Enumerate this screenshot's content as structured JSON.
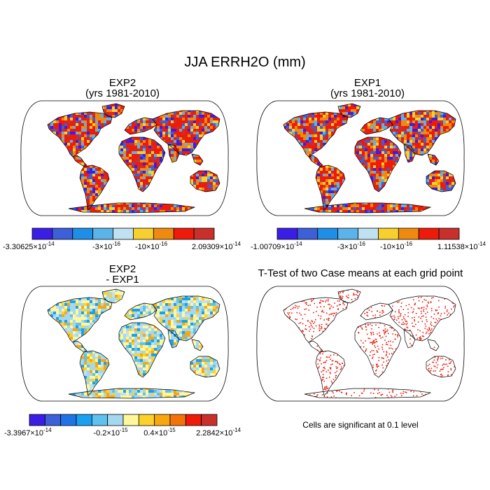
{
  "figure": {
    "title": "JJA ERRH2O (mm)"
  },
  "panels": {
    "exp2": {
      "title": "EXP2",
      "subtitle": "(yrs 1981-2010)"
    },
    "exp1": {
      "title": "EXP1",
      "subtitle": "(yrs 1981-2010)"
    },
    "diff": {
      "title": "EXP2",
      "subtitle": "- EXP1"
    },
    "ttest": {
      "title": "T-Test of two Case means at each grid point",
      "footnote": "Cells are significant at 0.1 level"
    }
  },
  "chart_data": [
    {
      "type": "heatmap",
      "name_ref": "EXP2 (yrs 1981-2010)",
      "projection": "robinson-like global map (land only)",
      "colorbar": {
        "colors": [
          "#3a1ee6",
          "#3d5fd8",
          "#1f8ee8",
          "#5ab4ea",
          "#bfe2f2",
          "#f7cf2e",
          "#f08a0e",
          "#ee1a0a",
          "#c9302c"
        ],
        "labels": [
          {
            "base": "-3.30625",
            "exp": "-14"
          },
          {
            "base": "-3",
            "exp": "-16"
          },
          {
            "base": "-10",
            "exp": "-16"
          },
          {
            "base": "2.09309",
            "exp": "-14"
          }
        ]
      }
    },
    {
      "type": "heatmap",
      "name_ref": "EXP1 (yrs 1981-2010)",
      "projection": "robinson-like global map (land only)",
      "colorbar": {
        "colors": [
          "#3a1ee6",
          "#3d5fd8",
          "#1f8ee8",
          "#5ab4ea",
          "#bfe2f2",
          "#f7cf2e",
          "#f08a0e",
          "#ee1a0a",
          "#c9302c"
        ],
        "labels": [
          {
            "base": "-1.00709",
            "exp": "-14"
          },
          {
            "base": "-3",
            "exp": "-16"
          },
          {
            "base": "-10",
            "exp": "-16"
          },
          {
            "base": "1.11538",
            "exp": "-14"
          }
        ]
      }
    },
    {
      "type": "heatmap",
      "name_ref": "EXP2 - EXP1",
      "projection": "robinson-like global map (land only)",
      "colorbar": {
        "colors": [
          "#3a1ee6",
          "#3d5fd8",
          "#1f73e6",
          "#1aa0f0",
          "#5fc1ee",
          "#a5d8f0",
          "#fff79a",
          "#fcd22a",
          "#f8a80e",
          "#f3720a",
          "#ee1a0a",
          "#c9302c"
        ],
        "labels": [
          {
            "base": "-3.3967",
            "exp": "-14"
          },
          {
            "base": "-0.2",
            "exp": "-15"
          },
          {
            "base": "0.4",
            "exp": "-15"
          },
          {
            "base": "2.2842",
            "exp": "-14"
          }
        ]
      }
    },
    {
      "type": "heatmap",
      "name_ref": "T-Test significance",
      "projection": "robinson-like global map (land only)",
      "significance_level": 0.1,
      "marker_color": "#ee1a0a"
    }
  ]
}
